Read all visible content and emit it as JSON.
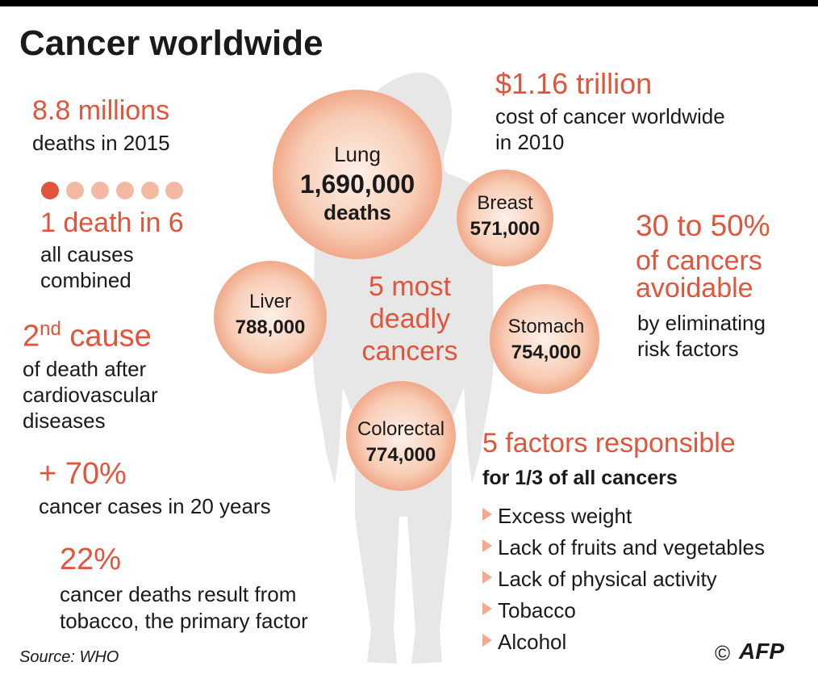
{
  "title": "Cancer worldwide",
  "deaths": {
    "headline": "8.8 millions",
    "text": "deaths in 2015"
  },
  "ratio": {
    "headline": "1 death in 6",
    "lines": [
      "all causes",
      "combined"
    ]
  },
  "rank": {
    "number": "2",
    "suffix": "nd",
    "headline": "cause",
    "lines": [
      "of death after",
      "cardiovascular",
      "diseases"
    ]
  },
  "increase": {
    "headline": "+ 70%",
    "text": "cancer cases in 20 years"
  },
  "tobacco": {
    "headline": "22%",
    "lines": [
      "cancer deaths result from",
      "tobacco, the primary factor"
    ]
  },
  "cost": {
    "headline": "$1.16 trillion",
    "lines": [
      "cost of cancer worldwide",
      "in 2010"
    ]
  },
  "avoidable": {
    "headline": [
      "30 to 50%",
      "of cancers",
      "avoidable"
    ],
    "lines": [
      "by eliminating",
      "risk factors"
    ]
  },
  "deadly": [
    "5 most",
    "deadly",
    "cancers"
  ],
  "cancers": [
    {
      "name": "Lung",
      "deaths": "1,690,000",
      "unit": "deaths"
    },
    {
      "name": "Breast",
      "deaths": "571,000"
    },
    {
      "name": "Liver",
      "deaths": "788,000"
    },
    {
      "name": "Stomach",
      "deaths": "754,000"
    },
    {
      "name": "Colorectal",
      "deaths": "774,000"
    }
  ],
  "factors": {
    "headline": "5 factors responsible",
    "subtitle": "for 1/3 of all cancers",
    "items": [
      "Excess weight",
      "Lack of fruits and vegetables",
      "Lack of physical activity",
      "Tobacco",
      "Alcohol"
    ]
  },
  "source": "Source: WHO",
  "copyright": "©",
  "logo": "AFP"
}
